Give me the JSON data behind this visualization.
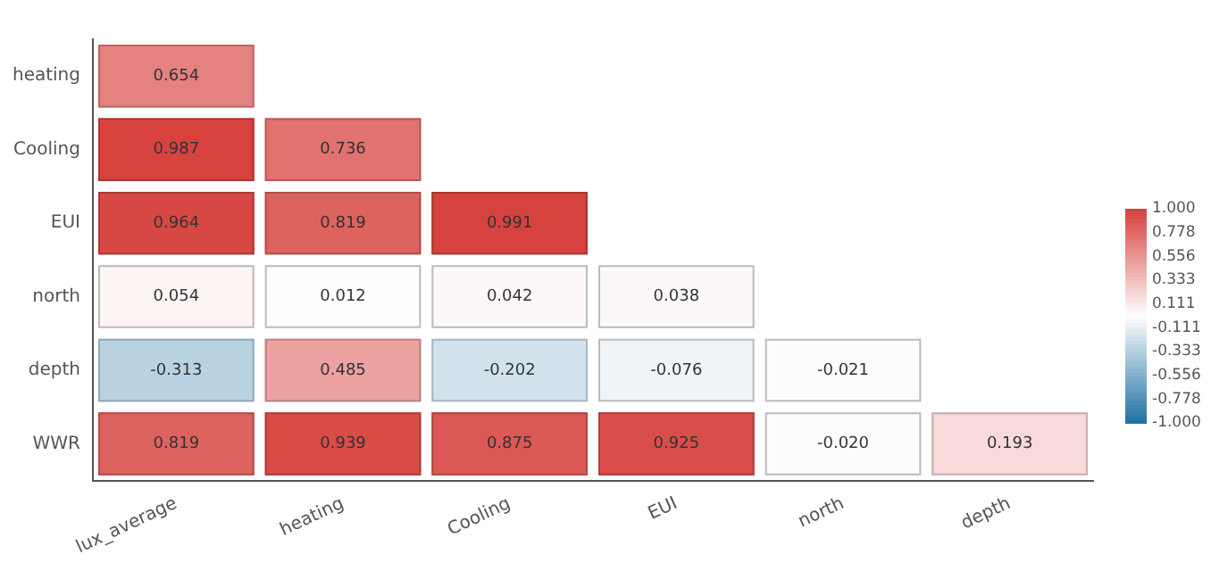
{
  "chart_data": {
    "type": "heatmap",
    "categories": [
      "lux_average",
      "heating",
      "Cooling",
      "EUI",
      "north",
      "depth"
    ],
    "y_categories": [
      "heating",
      "Cooling",
      "EUI",
      "north",
      "depth",
      "WWR"
    ],
    "cells": [
      [
        0.654,
        null,
        null,
        null,
        null,
        null
      ],
      [
        0.987,
        0.736,
        null,
        null,
        null,
        null
      ],
      [
        0.964,
        0.819,
        0.991,
        null,
        null,
        null
      ],
      [
        0.054,
        0.012,
        0.042,
        0.038,
        null,
        null
      ],
      [
        -0.313,
        0.485,
        -0.202,
        -0.076,
        -0.021,
        null
      ],
      [
        0.819,
        0.939,
        0.875,
        0.925,
        -0.02,
        0.193
      ]
    ],
    "cell_labels": [
      [
        "0.654",
        null,
        null,
        null,
        null,
        null
      ],
      [
        "0.987",
        "0.736",
        null,
        null,
        null,
        null
      ],
      [
        "0.964",
        "0.819",
        "0.991",
        null,
        null,
        null
      ],
      [
        "0.054",
        "0.012",
        "0.042",
        "0.038",
        null,
        null
      ],
      [
        "-0.313",
        "0.485",
        "-0.202",
        "-0.076",
        "-0.021",
        null
      ],
      [
        "0.819",
        "0.939",
        "0.875",
        "0.925",
        "-0.020",
        "0.193"
      ]
    ],
    "clim": [
      -1,
      1
    ],
    "cticks": [
      {
        "value": 1,
        "label": "1.000"
      },
      {
        "value": 0.778,
        "label": "0.778"
      },
      {
        "value": 0.556,
        "label": "0.556"
      },
      {
        "value": 0.333,
        "label": "0.333"
      },
      {
        "value": 0.111,
        "label": "0.111"
      },
      {
        "value": -0.111,
        "label": "-0.111"
      },
      {
        "value": -0.333,
        "label": "-0.333"
      },
      {
        "value": -0.556,
        "label": "-0.556"
      },
      {
        "value": -0.778,
        "label": "-0.778"
      },
      {
        "value": -1,
        "label": "-1.000"
      }
    ],
    "grid": false
  }
}
